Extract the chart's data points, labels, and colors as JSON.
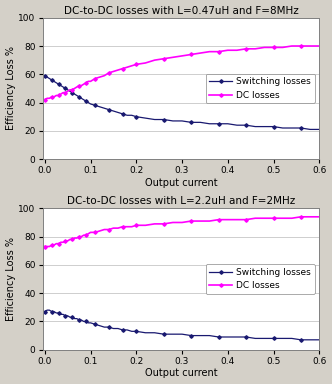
{
  "chart1": {
    "title": "DC-to-DC losses with L=0.47uH and F=8MHz",
    "switching_x": [
      0,
      0.005,
      0.01,
      0.015,
      0.02,
      0.025,
      0.03,
      0.035,
      0.04,
      0.045,
      0.05,
      0.055,
      0.06,
      0.065,
      0.07,
      0.075,
      0.08,
      0.085,
      0.09,
      0.095,
      0.1,
      0.11,
      0.12,
      0.13,
      0.14,
      0.15,
      0.16,
      0.17,
      0.18,
      0.19,
      0.2,
      0.22,
      0.24,
      0.26,
      0.28,
      0.3,
      0.32,
      0.34,
      0.36,
      0.38,
      0.4,
      0.42,
      0.44,
      0.46,
      0.48,
      0.5,
      0.52,
      0.54,
      0.56,
      0.58,
      0.6
    ],
    "switching_y": [
      59,
      58,
      57,
      56,
      55,
      54,
      53,
      52,
      51,
      50,
      49,
      48,
      47,
      46,
      45,
      44,
      43,
      42,
      41,
      40,
      39,
      38,
      37,
      36,
      35,
      34,
      33,
      32,
      31,
      31,
      30,
      29,
      28,
      28,
      27,
      27,
      26,
      26,
      25,
      25,
      25,
      24,
      24,
      23,
      23,
      23,
      22,
      22,
      22,
      21,
      21
    ],
    "dc_x": [
      0,
      0.005,
      0.01,
      0.015,
      0.02,
      0.025,
      0.03,
      0.035,
      0.04,
      0.045,
      0.05,
      0.055,
      0.06,
      0.065,
      0.07,
      0.075,
      0.08,
      0.085,
      0.09,
      0.095,
      0.1,
      0.11,
      0.12,
      0.13,
      0.14,
      0.15,
      0.16,
      0.17,
      0.18,
      0.19,
      0.2,
      0.22,
      0.24,
      0.26,
      0.28,
      0.3,
      0.32,
      0.34,
      0.36,
      0.38,
      0.4,
      0.42,
      0.44,
      0.46,
      0.48,
      0.5,
      0.52,
      0.54,
      0.56,
      0.58,
      0.6
    ],
    "dc_y": [
      42,
      43,
      43,
      44,
      44,
      45,
      45,
      46,
      47,
      47,
      48,
      49,
      49,
      50,
      51,
      52,
      52,
      53,
      54,
      55,
      55,
      57,
      58,
      59,
      61,
      62,
      63,
      64,
      65,
      66,
      67,
      68,
      70,
      71,
      72,
      73,
      74,
      75,
      76,
      76,
      77,
      77,
      78,
      78,
      79,
      79,
      79,
      80,
      80,
      80,
      80
    ],
    "switching_color": "#191970",
    "dc_color": "#FF00FF",
    "ylabel": "Efficiency Loss %",
    "xlabel": "Output current",
    "ylim": [
      0,
      100
    ],
    "xlim": [
      -0.005,
      0.6
    ],
    "yticks": [
      0,
      20,
      40,
      60,
      80,
      100
    ],
    "xticks": [
      0,
      0.1,
      0.2,
      0.3,
      0.4,
      0.5,
      0.6
    ]
  },
  "chart2": {
    "title": "DC-to-DC losses with L=2.2uH and F=2MHz",
    "switching_x": [
      0,
      0.005,
      0.01,
      0.015,
      0.02,
      0.025,
      0.03,
      0.035,
      0.04,
      0.045,
      0.05,
      0.055,
      0.06,
      0.065,
      0.07,
      0.075,
      0.08,
      0.085,
      0.09,
      0.095,
      0.1,
      0.11,
      0.12,
      0.13,
      0.14,
      0.15,
      0.16,
      0.17,
      0.18,
      0.19,
      0.2,
      0.22,
      0.24,
      0.26,
      0.28,
      0.3,
      0.32,
      0.34,
      0.36,
      0.38,
      0.4,
      0.42,
      0.44,
      0.46,
      0.48,
      0.5,
      0.52,
      0.54,
      0.56,
      0.58,
      0.6
    ],
    "switching_y": [
      27,
      28,
      28,
      27,
      27,
      26,
      26,
      25,
      25,
      24,
      24,
      23,
      23,
      22,
      22,
      21,
      21,
      20,
      20,
      19,
      19,
      18,
      17,
      16,
      16,
      15,
      15,
      14,
      14,
      13,
      13,
      12,
      12,
      11,
      11,
      11,
      10,
      10,
      10,
      9,
      9,
      9,
      9,
      8,
      8,
      8,
      8,
      8,
      7,
      7,
      7
    ],
    "dc_x": [
      0,
      0.005,
      0.01,
      0.015,
      0.02,
      0.025,
      0.03,
      0.035,
      0.04,
      0.045,
      0.05,
      0.055,
      0.06,
      0.065,
      0.07,
      0.075,
      0.08,
      0.085,
      0.09,
      0.095,
      0.1,
      0.11,
      0.12,
      0.13,
      0.14,
      0.15,
      0.16,
      0.17,
      0.18,
      0.19,
      0.2,
      0.22,
      0.24,
      0.26,
      0.28,
      0.3,
      0.32,
      0.34,
      0.36,
      0.38,
      0.4,
      0.42,
      0.44,
      0.46,
      0.48,
      0.5,
      0.52,
      0.54,
      0.56,
      0.58,
      0.6
    ],
    "dc_y": [
      73,
      73,
      73,
      74,
      74,
      75,
      75,
      76,
      76,
      77,
      77,
      78,
      78,
      79,
      79,
      80,
      80,
      81,
      81,
      82,
      83,
      83,
      84,
      85,
      85,
      86,
      86,
      87,
      87,
      87,
      88,
      88,
      89,
      89,
      90,
      90,
      91,
      91,
      91,
      92,
      92,
      92,
      92,
      93,
      93,
      93,
      93,
      93,
      94,
      94,
      94
    ],
    "switching_color": "#191970",
    "dc_color": "#FF00FF",
    "ylabel": "Efficiency Loss %",
    "xlabel": "Output current",
    "ylim": [
      0,
      100
    ],
    "xlim": [
      -0.005,
      0.6
    ],
    "yticks": [
      0,
      20,
      40,
      60,
      80,
      100
    ],
    "xticks": [
      0,
      0.1,
      0.2,
      0.3,
      0.4,
      0.5,
      0.6
    ]
  },
  "legend_switching": "Switching losses",
  "legend_dc": "DC losses",
  "bg_color": "#D4D0C8",
  "plot_bg": "#FFFFFF",
  "border_color": "#808080",
  "title_fontsize": 7.5,
  "label_fontsize": 7,
  "tick_fontsize": 6.5,
  "legend_fontsize": 6.5
}
